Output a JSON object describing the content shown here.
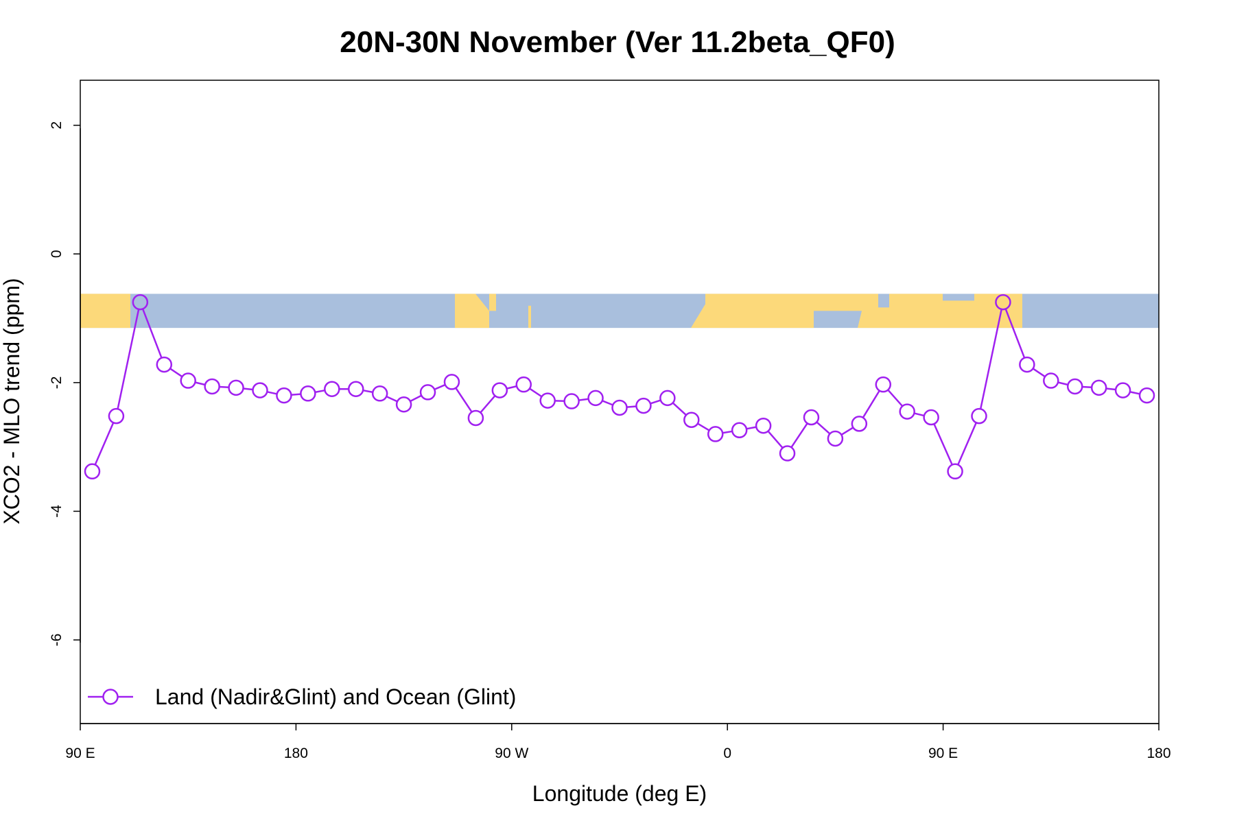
{
  "chart_data": {
    "type": "line",
    "title": "20N-30N November (Ver 11.2beta_QF0)",
    "xlabel": "Longitude (deg E)",
    "ylabel": "XCO2 - MLO trend (ppm)",
    "xlim": [
      90,
      540
    ],
    "ylim": [
      -7.3,
      2.7
    ],
    "x_ticks": [
      {
        "value": 90,
        "label": "90 E"
      },
      {
        "value": 180,
        "label": "180"
      },
      {
        "value": 270,
        "label": "90 W"
      },
      {
        "value": 360,
        "label": "0"
      },
      {
        "value": 450,
        "label": "90 E"
      },
      {
        "value": 540,
        "label": "180"
      }
    ],
    "y_ticks": [
      {
        "value": 2,
        "label": "2"
      },
      {
        "value": 0,
        "label": "0"
      },
      {
        "value": -2,
        "label": "-2"
      },
      {
        "value": -4,
        "label": "-4"
      },
      {
        "value": -6,
        "label": "-6"
      }
    ],
    "grid": false,
    "legend_position": "bottom-left",
    "land_ocean_strip": {
      "y_range": [
        -1.15,
        -0.62
      ],
      "land_color": "#fcd97a",
      "ocean_color": "#a9bfdd"
    },
    "series": [
      {
        "name": "Land (Nadir&Glint) and Ocean (Glint)",
        "color": "#a020f0",
        "marker": "open-circle",
        "x": [
          95,
          105,
          115,
          125,
          135,
          145,
          155,
          165,
          175,
          185,
          195,
          205,
          215,
          225,
          235,
          245,
          255,
          265,
          275,
          285,
          295,
          305,
          315,
          325,
          335,
          345,
          355,
          365,
          375,
          385,
          395,
          405,
          415,
          425,
          435,
          445,
          455,
          465,
          475,
          485,
          495,
          505,
          515,
          525,
          535
        ],
        "y": [
          -3.38,
          -2.52,
          -0.75,
          -1.72,
          -1.97,
          -2.06,
          -2.08,
          -2.12,
          -2.2,
          -2.17,
          -2.1,
          -2.1,
          -2.17,
          -2.34,
          -2.15,
          -1.99,
          -2.55,
          -2.12,
          -2.03,
          -2.28,
          -2.29,
          -2.24,
          -2.39,
          -2.36,
          -2.24,
          -2.58,
          -2.8,
          -2.74,
          -2.67,
          -3.1,
          -2.54,
          -2.87,
          -2.64,
          -2.03,
          -2.45,
          -2.54,
          -3.38,
          -2.52,
          -0.75,
          -1.72,
          -1.97,
          -2.06,
          -2.08,
          -2.12,
          -2.2
        ]
      }
    ]
  }
}
